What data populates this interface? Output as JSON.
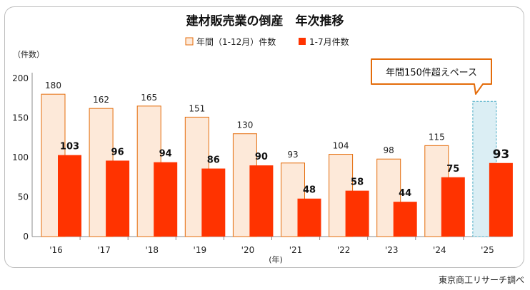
{
  "chart_data": {
    "type": "bar",
    "title": "建材販売業の倒産　年次推移",
    "ylabel": "（件数）",
    "xlabel": "(年)",
    "ylim": [
      0,
      200
    ],
    "yticks": [
      0,
      50,
      100,
      150,
      200
    ],
    "categories": [
      "'16",
      "'17",
      "'18",
      "'19",
      "'20",
      "'21",
      "'22",
      "'23",
      "'24",
      "'25"
    ],
    "series": [
      {
        "name": "年間（1-12月）件数",
        "values": [
          180,
          162,
          165,
          151,
          130,
          93,
          104,
          98,
          115,
          null
        ],
        "color": "#fde9d9",
        "stroke": "#e46c0a"
      },
      {
        "name": "1-7月件数",
        "values": [
          103,
          96,
          94,
          86,
          90,
          48,
          58,
          44,
          75,
          93
        ],
        "color": "#ff3300"
      }
    ],
    "projection": {
      "category": "'25",
      "value": 171,
      "label": "年間150件超えペース",
      "fill": "#dbeef4",
      "stroke": "#4bacc6"
    },
    "legend_position": "top",
    "grid": false
  },
  "source": "東京商工リサーチ調べ"
}
